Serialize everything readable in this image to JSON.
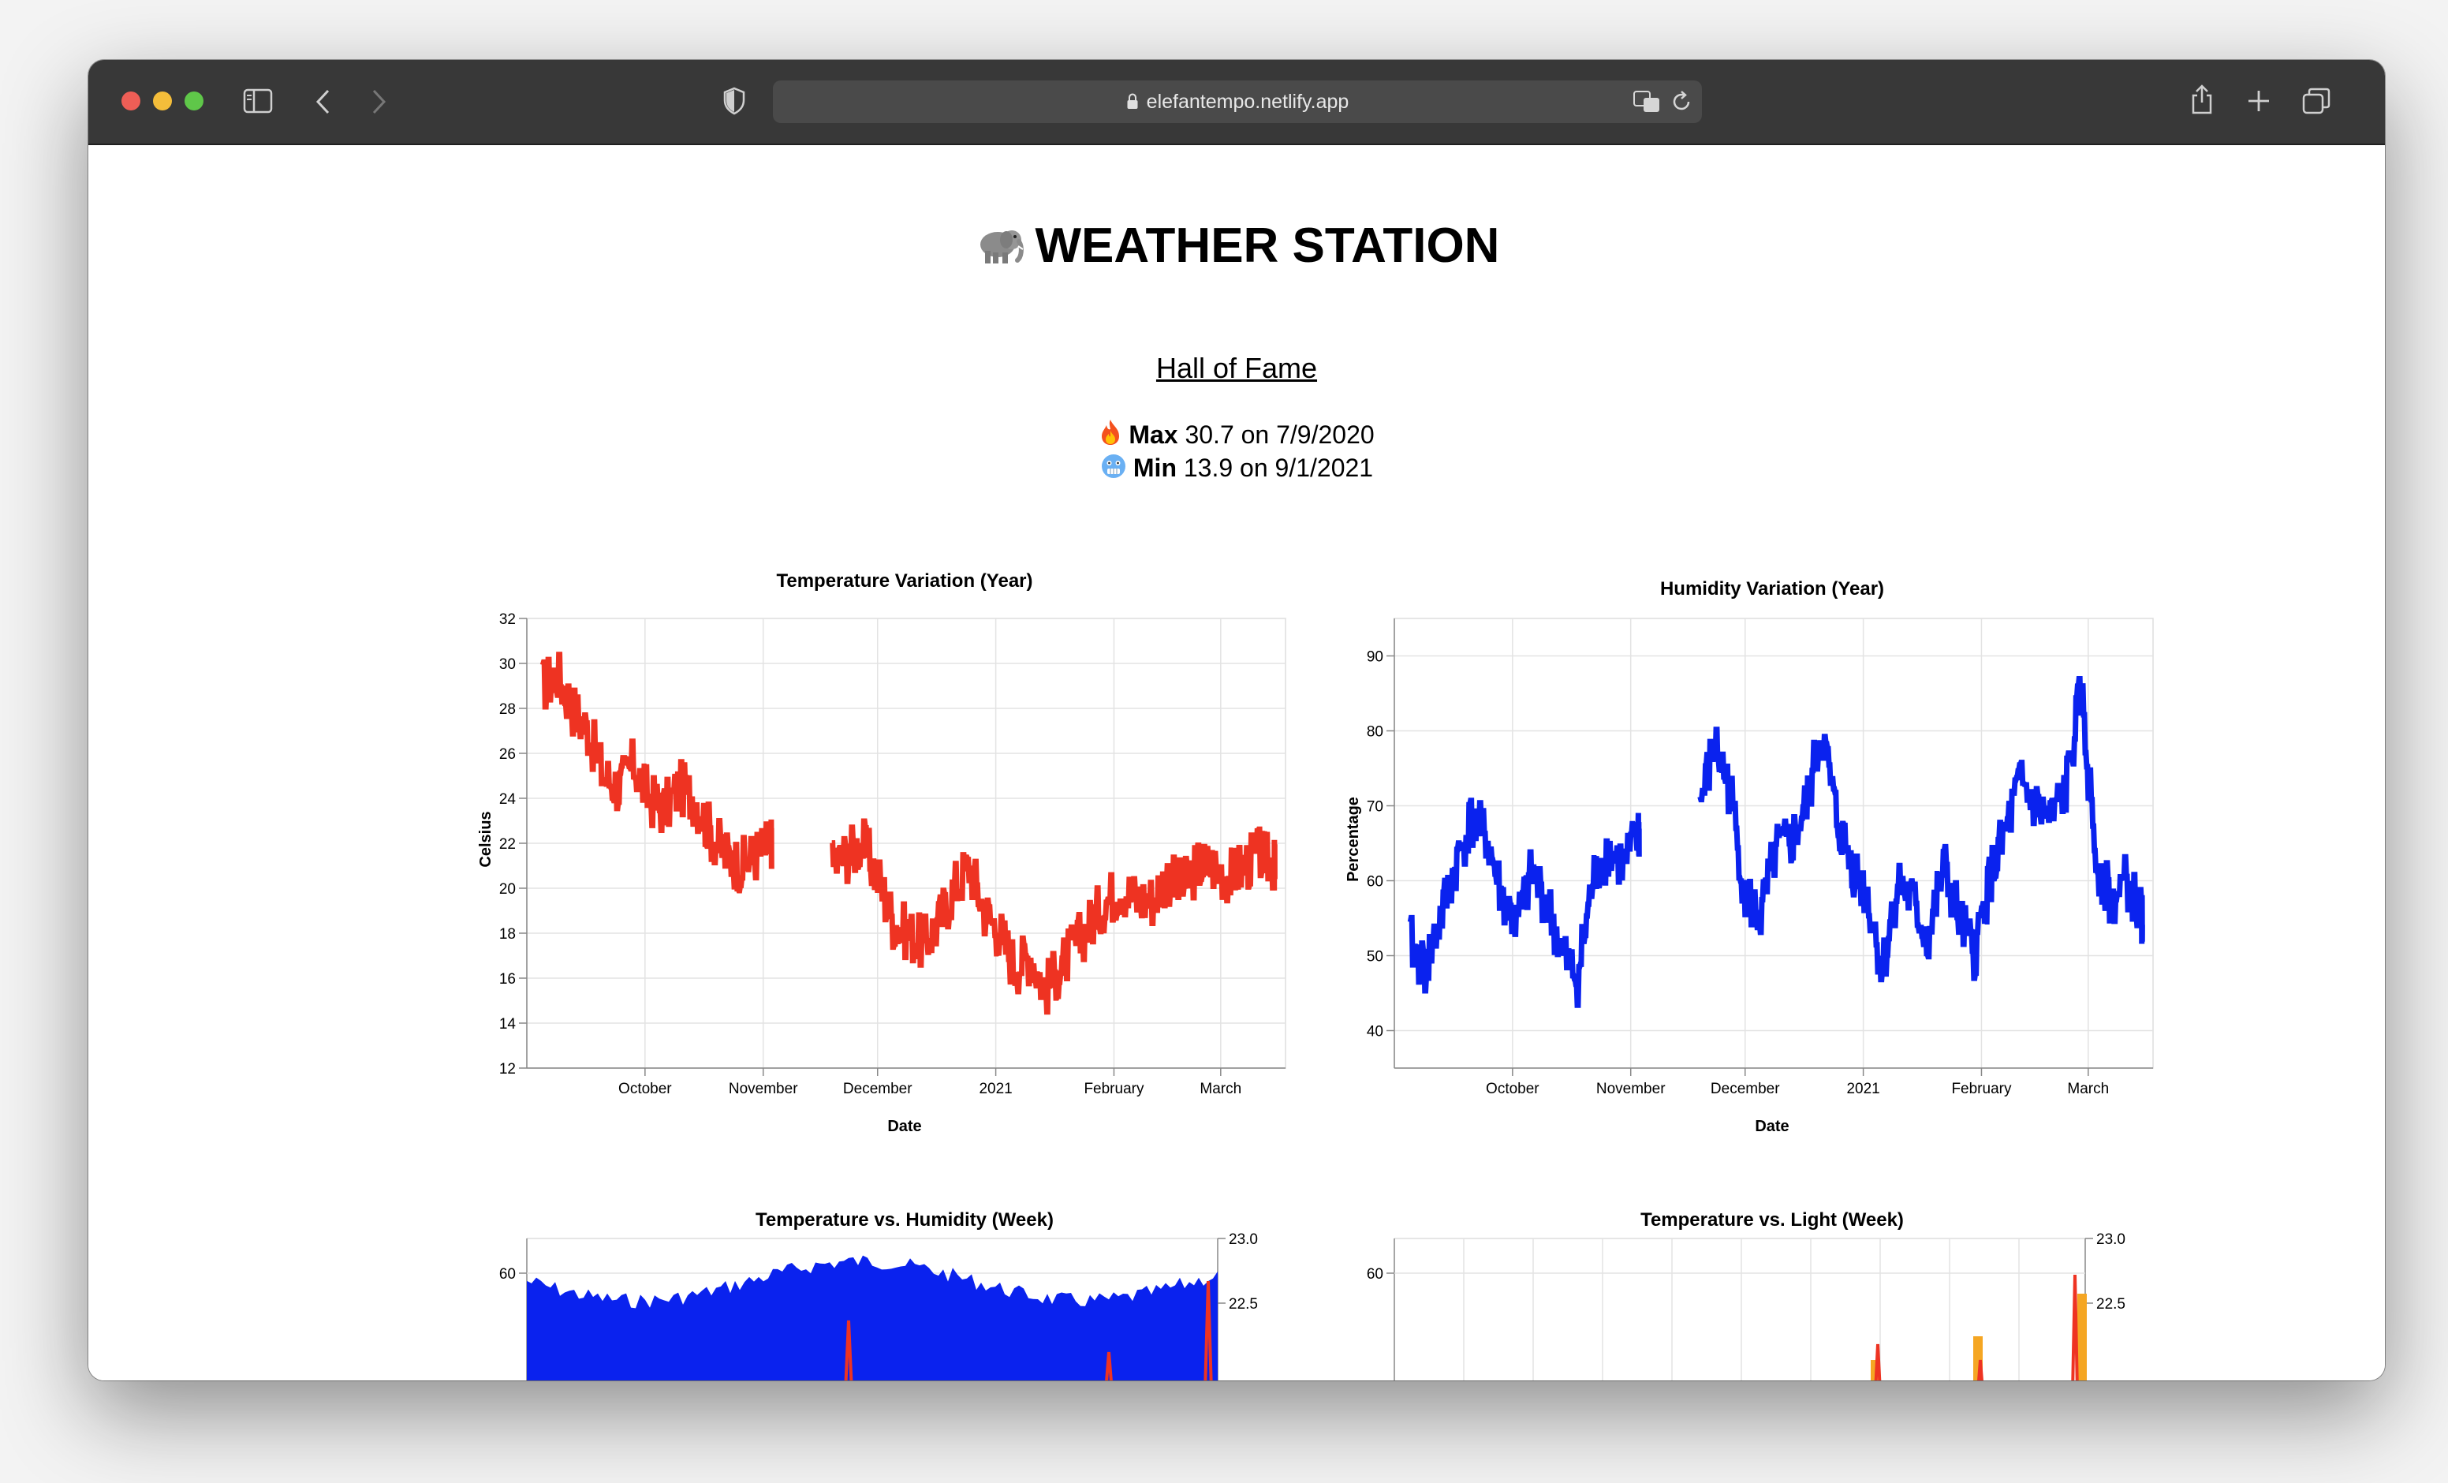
{
  "browser": {
    "url": "elefantempo.netlify.app"
  },
  "page": {
    "title": "WEATHER STATION",
    "hall_of_fame": "Hall of Fame",
    "max": {
      "label": "Max",
      "text": "30.7 on 7/9/2020"
    },
    "min": {
      "label": "Min",
      "text": "13.9 on 9/1/2021"
    }
  },
  "icons": {
    "elephant": "elephant-icon",
    "fire": "fire-icon",
    "cold_face": "cold-face-icon"
  },
  "colors": {
    "temperature": "#ee3322",
    "humidity": "#0a22ee",
    "light": "#f5a623"
  },
  "chart_data": [
    {
      "type": "line",
      "title": "Temperature Variation (Year)",
      "xlabel": "Date",
      "ylabel": "Celsius",
      "x_ticks": [
        "October",
        "November",
        "December",
        "2021",
        "February",
        "March"
      ],
      "ylim": [
        12,
        32
      ],
      "y_ticks": [
        12,
        14,
        16,
        18,
        20,
        22,
        24,
        26,
        28,
        30,
        32
      ],
      "grid": true,
      "series": [
        {
          "x": [
            "2020-09-04",
            "2020-09-08",
            "2020-09-12",
            "2020-09-16",
            "2020-09-20",
            "2020-09-24",
            "2020-09-28",
            "2020-10-02",
            "2020-10-06",
            "2020-10-10",
            "2020-10-14",
            "2020-10-18",
            "2020-10-22",
            "2020-10-26",
            "2020-10-30",
            "2020-11-03",
            "2020-11-07",
            "2020-11-11",
            "2020-11-15",
            "2020-11-19",
            "2020-11-23",
            "2020-11-27",
            "2020-12-01",
            "2020-12-05",
            "2020-12-09",
            "2020-12-13",
            "2020-12-17",
            "2020-12-21",
            "2020-12-25",
            "2020-12-29",
            "2021-01-02",
            "2021-01-06",
            "2021-01-10",
            "2021-01-14",
            "2021-01-18",
            "2021-01-22",
            "2021-01-26",
            "2021-01-30",
            "2021-02-03",
            "2021-02-07",
            "2021-02-11",
            "2021-02-15",
            "2021-02-19",
            "2021-02-23",
            "2021-02-27",
            "2021-03-03",
            "2021-03-07",
            "2021-03-11",
            "2021-03-15"
          ],
          "y": [
            29,
            29.5,
            28,
            27,
            25,
            24.5,
            25.5,
            24,
            23.5,
            24.5,
            24,
            22.5,
            21.5,
            21,
            21.5,
            22,
            null,
            null,
            null,
            21,
            21.5,
            22,
            20.5,
            18.5,
            18,
            17.5,
            18.5,
            20,
            21,
            19,
            18,
            16.5,
            17,
            15.5,
            16.5,
            17.5,
            18.5,
            19.5,
            20,
            19.5,
            19.5,
            20.5,
            20,
            21,
            21,
            20.5,
            21,
            21.5,
            21
          ]
        }
      ]
    },
    {
      "type": "line",
      "title": "Humidity Variation (Year)",
      "xlabel": "Date",
      "ylabel": "Percentage",
      "x_ticks": [
        "October",
        "November",
        "December",
        "2021",
        "February",
        "March"
      ],
      "ylim": [
        35,
        95
      ],
      "y_ticks": [
        40,
        50,
        60,
        70,
        80,
        90
      ],
      "grid": true,
      "series": [
        {
          "x": [
            "2020-09-04",
            "2020-09-08",
            "2020-09-12",
            "2020-09-16",
            "2020-09-20",
            "2020-09-24",
            "2020-09-28",
            "2020-10-02",
            "2020-10-06",
            "2020-10-10",
            "2020-10-14",
            "2020-10-18",
            "2020-10-22",
            "2020-10-26",
            "2020-10-30",
            "2020-11-03",
            "2020-11-07",
            "2020-11-11",
            "2020-11-15",
            "2020-11-19",
            "2020-11-23",
            "2020-11-27",
            "2020-12-01",
            "2020-12-05",
            "2020-12-09",
            "2020-12-13",
            "2020-12-17",
            "2020-12-21",
            "2020-12-25",
            "2020-12-29",
            "2021-01-02",
            "2021-01-06",
            "2021-01-10",
            "2021-01-14",
            "2021-01-18",
            "2021-01-22",
            "2021-01-26",
            "2021-01-30",
            "2021-02-03",
            "2021-02-07",
            "2021-02-11",
            "2021-02-15",
            "2021-02-19",
            "2021-02-23",
            "2021-02-27",
            "2021-03-03",
            "2021-03-07",
            "2021-03-11",
            "2021-03-15"
          ],
          "y": [
            52,
            48,
            55,
            62,
            68,
            66,
            58,
            54,
            61,
            57,
            50,
            47,
            60,
            64,
            62,
            66,
            null,
            null,
            null,
            70,
            78,
            72,
            58,
            55,
            64,
            65,
            70,
            80,
            68,
            62,
            58,
            48,
            60,
            57,
            52,
            62,
            55,
            50,
            60,
            66,
            73,
            70,
            68,
            72,
            85,
            63,
            57,
            60,
            55
          ]
        }
      ]
    },
    {
      "type": "area",
      "title": "Temperature vs. Humidity (Week)",
      "y_ticks": [
        60
      ],
      "y2_ticks": [
        23.0,
        22.5
      ]
    },
    {
      "type": "area",
      "title": "Temperature vs. Light (Week)",
      "y_ticks": [
        60
      ],
      "y2_ticks": [
        23.0,
        22.5
      ]
    }
  ]
}
